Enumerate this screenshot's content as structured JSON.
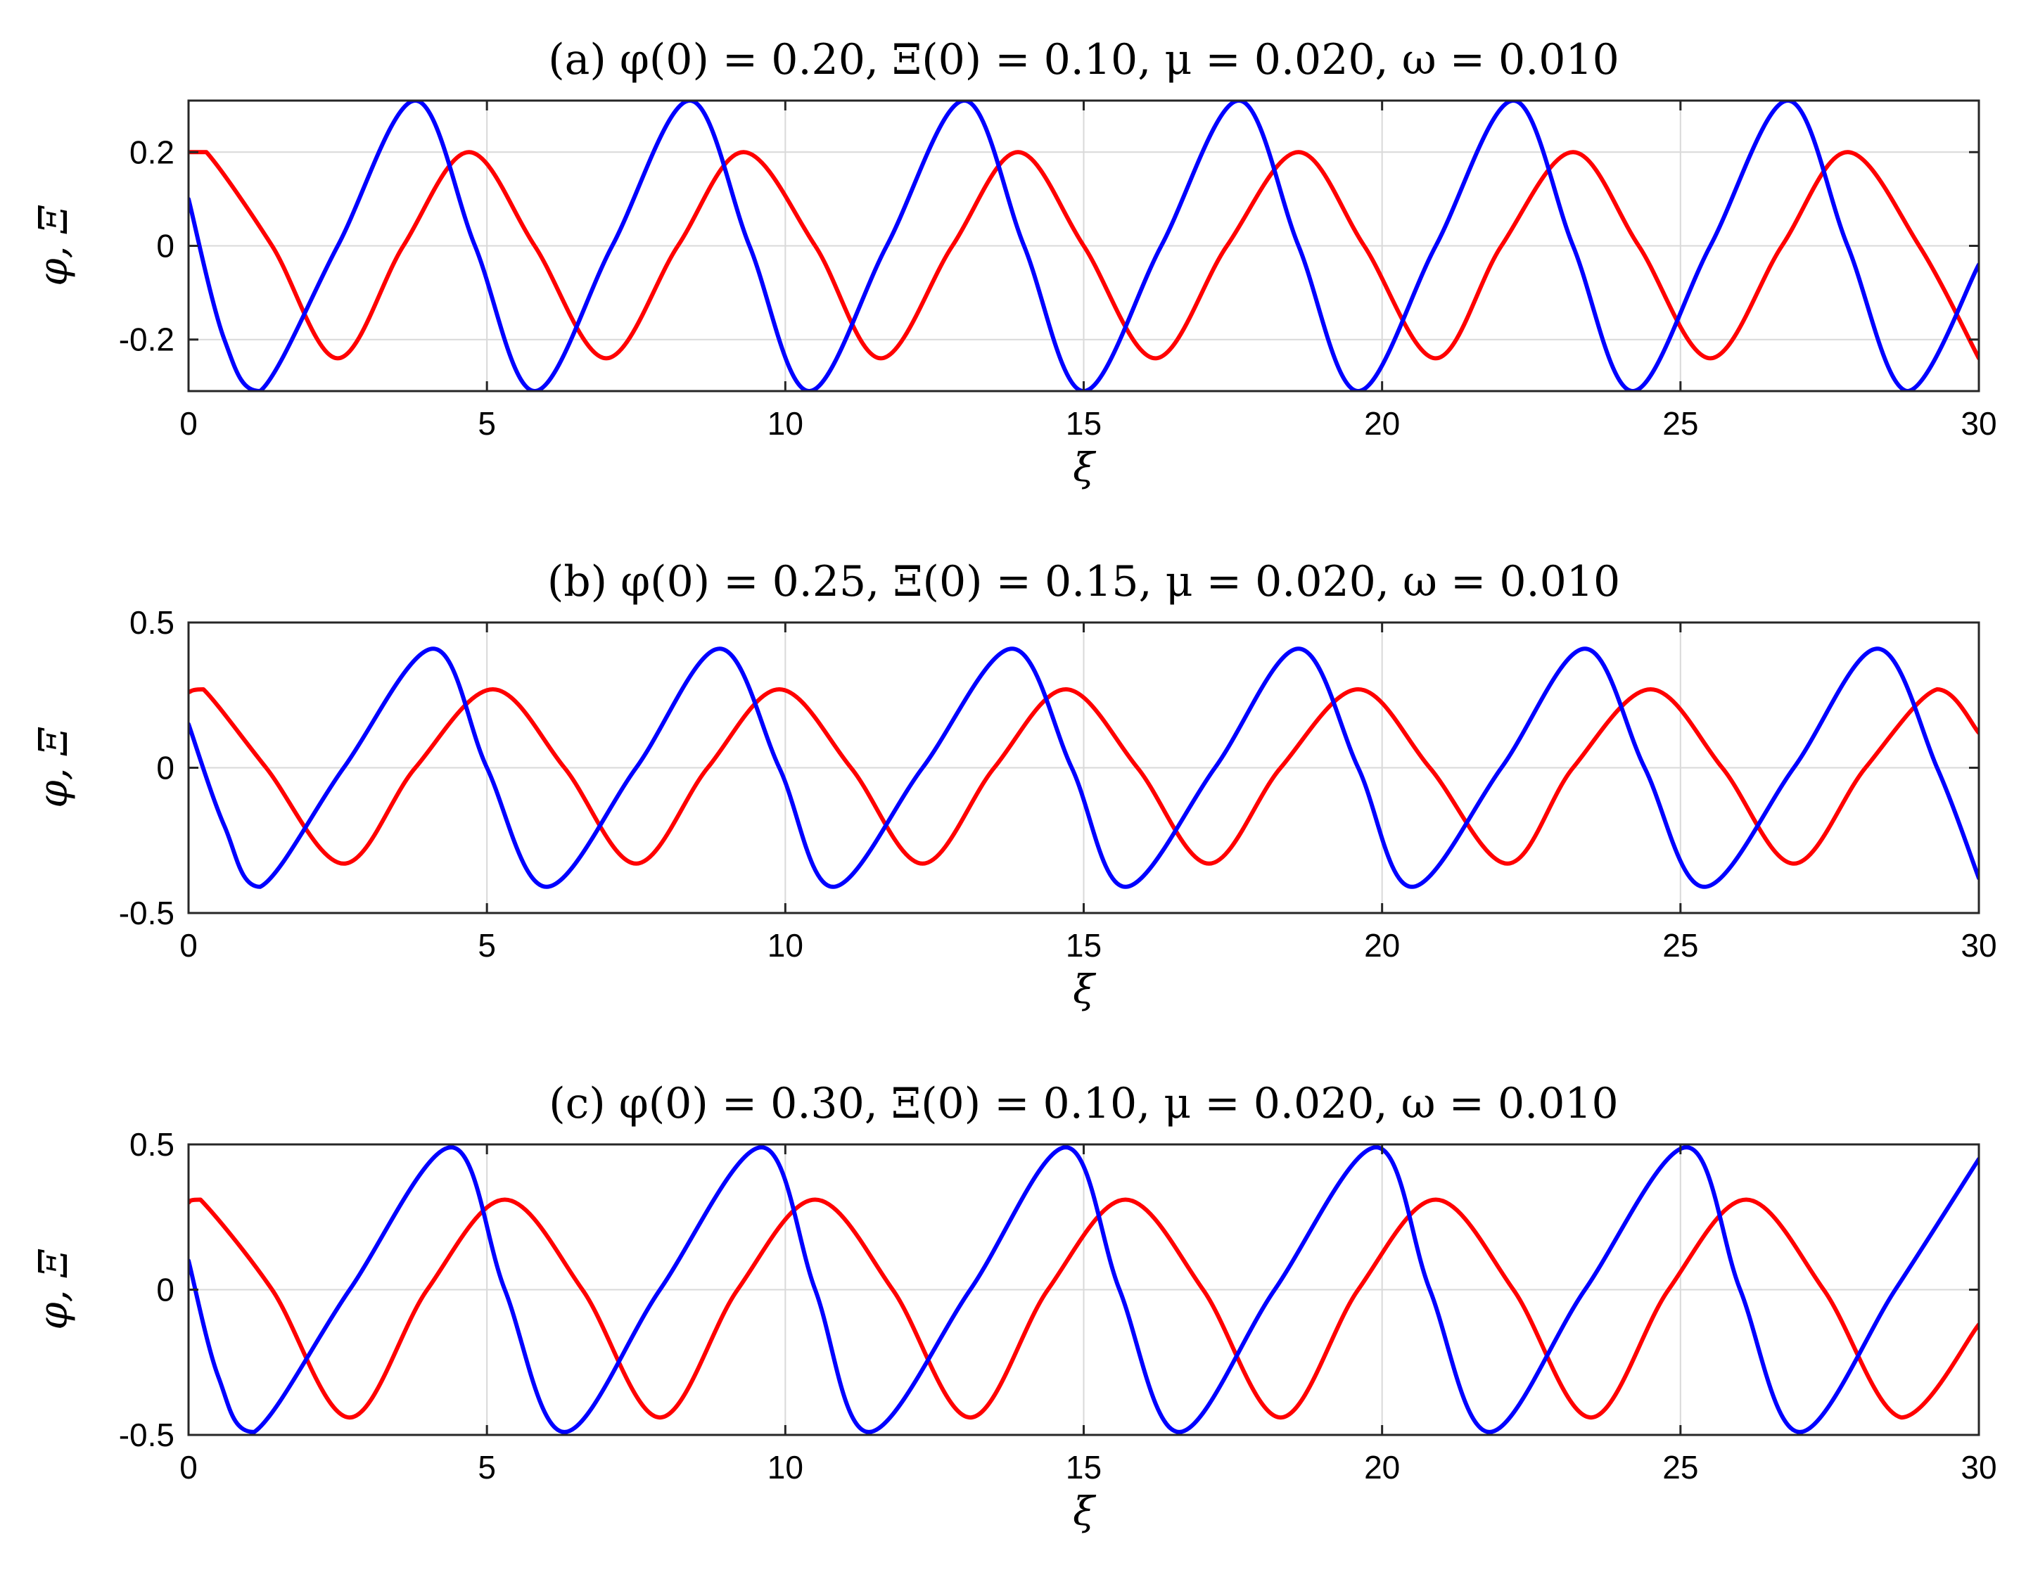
{
  "chart_data": [
    {
      "type": "line",
      "title": "(a) φ(0) = 0.20, Ξ(0) = 0.10, μ = 0.020, ω = 0.010",
      "xlabel": "ξ",
      "ylabel": "φ, Ξ",
      "xlim": [
        0,
        30
      ],
      "ylim": [
        -0.31,
        0.31
      ],
      "xticks": [
        0,
        5,
        10,
        15,
        20,
        25,
        30
      ],
      "xtick_labels": [
        "0",
        "5",
        "10",
        "15",
        "20",
        "25",
        "30"
      ],
      "yticks": [
        -0.2,
        0,
        0.2
      ],
      "ytick_labels": [
        "-0.2",
        "0",
        "0.2"
      ],
      "grid": true,
      "series": [
        {
          "color": "#ff0000",
          "x": [
            0,
            0.3,
            1.4,
            2.5,
            3.6,
            4.7,
            5.8,
            7.0,
            8.2,
            9.3,
            10.5,
            11.6,
            12.8,
            13.9,
            15.0,
            16.2,
            17.4,
            18.6,
            19.7,
            20.9,
            22.0,
            23.2,
            24.3,
            25.5,
            26.7,
            27.8,
            29.0,
            30.0
          ],
          "y": [
            0.2,
            0.2,
            0.0,
            -0.24,
            0.0,
            0.2,
            0.0,
            -0.24,
            0.0,
            0.2,
            0.0,
            -0.24,
            0.0,
            0.2,
            0.0,
            -0.24,
            0.0,
            0.2,
            0.0,
            -0.24,
            0.0,
            0.2,
            0.0,
            -0.24,
            0.0,
            0.2,
            0.0,
            -0.24
          ]
        },
        {
          "color": "#0000ff",
          "x": [
            0,
            0.6,
            1.2,
            2.5,
            3.8,
            4.8,
            5.8,
            7.1,
            8.4,
            9.4,
            10.4,
            11.7,
            13.0,
            14.0,
            15.0,
            16.3,
            17.6,
            18.6,
            19.6,
            20.9,
            22.2,
            23.2,
            24.2,
            25.5,
            26.8,
            27.8,
            28.8,
            30.0
          ],
          "y": [
            0.1,
            -0.2,
            -0.31,
            0.0,
            0.31,
            0.0,
            -0.31,
            0.0,
            0.31,
            0.0,
            -0.31,
            0.0,
            0.31,
            0.0,
            -0.31,
            0.0,
            0.31,
            0.0,
            -0.31,
            0.0,
            0.31,
            0.0,
            -0.31,
            0.0,
            0.31,
            0.0,
            -0.31,
            -0.04
          ]
        }
      ]
    },
    {
      "type": "line",
      "title": "(b) φ(0) = 0.25, Ξ(0) = 0.15, μ = 0.020, ω = 0.010",
      "xlabel": "ξ",
      "ylabel": "φ, Ξ",
      "xlim": [
        0,
        30
      ],
      "ylim": [
        -0.5,
        0.5
      ],
      "xticks": [
        0,
        5,
        10,
        15,
        20,
        25,
        30
      ],
      "xtick_labels": [
        "0",
        "5",
        "10",
        "15",
        "20",
        "25",
        "30"
      ],
      "yticks": [
        -0.5,
        0,
        0.5
      ],
      "ytick_labels": [
        "-0.5",
        "0",
        "0.5"
      ],
      "grid": true,
      "series": [
        {
          "color": "#ff0000",
          "x": [
            0,
            0.25,
            1.3,
            2.6,
            3.8,
            5.1,
            6.3,
            7.5,
            8.7,
            9.9,
            11.1,
            12.3,
            13.5,
            14.7,
            15.9,
            17.1,
            18.3,
            19.6,
            20.8,
            22.1,
            23.2,
            24.5,
            25.7,
            26.9,
            28.1,
            29.3,
            30.0
          ],
          "y": [
            0.26,
            0.27,
            0.0,
            -0.33,
            0.0,
            0.27,
            0.0,
            -0.33,
            0.0,
            0.27,
            0.0,
            -0.33,
            0.0,
            0.27,
            0.0,
            -0.33,
            0.0,
            0.27,
            0.0,
            -0.33,
            0.0,
            0.27,
            0.0,
            -0.33,
            0.0,
            0.27,
            0.12
          ]
        },
        {
          "color": "#0000ff",
          "x": [
            0,
            0.6,
            1.2,
            2.6,
            4.1,
            5.0,
            6.0,
            7.5,
            8.9,
            9.9,
            10.8,
            12.3,
            13.8,
            14.8,
            15.7,
            17.2,
            18.6,
            19.6,
            20.5,
            22.0,
            23.4,
            24.4,
            25.4,
            26.9,
            28.3,
            29.3,
            30.0
          ],
          "y": [
            0.15,
            -0.2,
            -0.41,
            0.0,
            0.41,
            0.0,
            -0.41,
            0.0,
            0.41,
            0.0,
            -0.41,
            0.0,
            0.41,
            0.0,
            -0.41,
            0.0,
            0.41,
            0.0,
            -0.41,
            0.0,
            0.41,
            0.0,
            -0.41,
            0.0,
            0.41,
            0.0,
            -0.38
          ]
        }
      ]
    },
    {
      "type": "line",
      "title": "(c) φ(0) = 0.30, Ξ(0) = 0.10, μ = 0.020, ω = 0.010",
      "xlabel": "ξ",
      "ylabel": "φ, Ξ",
      "xlim": [
        0,
        30
      ],
      "ylim": [
        -0.5,
        0.5
      ],
      "xticks": [
        0,
        5,
        10,
        15,
        20,
        25,
        30
      ],
      "xtick_labels": [
        "0",
        "5",
        "10",
        "15",
        "20",
        "25",
        "30"
      ],
      "yticks": [
        -0.5,
        0,
        0.5
      ],
      "ytick_labels": [
        "-0.5",
        "0",
        "0.5"
      ],
      "grid": true,
      "series": [
        {
          "color": "#ff0000",
          "x": [
            0,
            0.2,
            1.4,
            2.7,
            4.0,
            5.3,
            6.6,
            7.9,
            9.2,
            10.5,
            11.8,
            13.1,
            14.4,
            15.7,
            17.0,
            18.3,
            19.6,
            20.9,
            22.2,
            23.5,
            24.8,
            26.1,
            27.4,
            28.7,
            30.0
          ],
          "y": [
            0.3,
            0.31,
            0.0,
            -0.44,
            0.0,
            0.31,
            0.0,
            -0.44,
            0.0,
            0.31,
            0.0,
            -0.44,
            0.0,
            0.31,
            0.0,
            -0.44,
            0.0,
            0.31,
            0.0,
            -0.44,
            0.0,
            0.31,
            0.0,
            -0.44,
            -0.12
          ]
        },
        {
          "color": "#0000ff",
          "x": [
            0,
            0.5,
            1.1,
            2.7,
            4.4,
            5.3,
            6.3,
            7.9,
            9.6,
            10.5,
            11.4,
            13.1,
            14.7,
            15.6,
            16.6,
            18.2,
            19.9,
            20.8,
            21.8,
            23.4,
            25.1,
            26.0,
            27.0,
            28.6,
            30.0
          ],
          "y": [
            0.1,
            -0.3,
            -0.49,
            0.0,
            0.49,
            0.0,
            -0.49,
            0.0,
            0.49,
            0.0,
            -0.49,
            0.0,
            0.49,
            0.0,
            -0.49,
            0.0,
            0.49,
            0.0,
            -0.49,
            0.0,
            0.49,
            0.0,
            -0.49,
            0.0,
            0.45
          ]
        }
      ]
    }
  ]
}
